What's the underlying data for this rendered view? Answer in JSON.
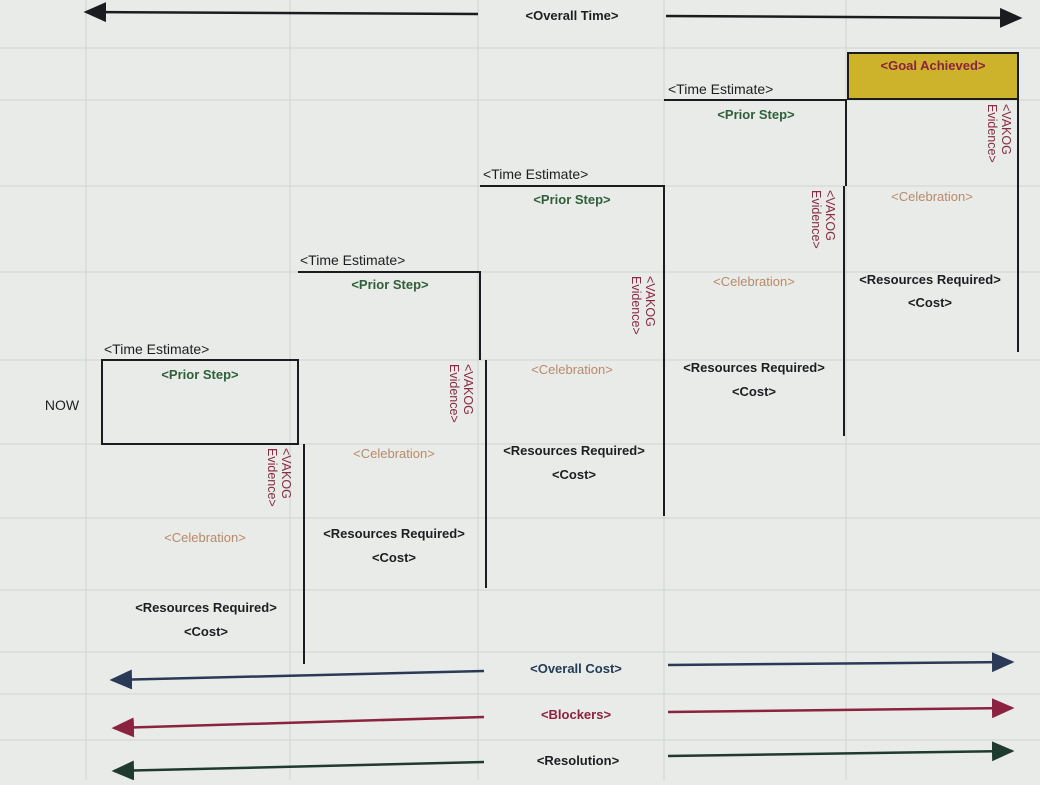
{
  "colors": {
    "paper": "#e9ebe8",
    "grid": "#cfd4d2",
    "line": "#1c1c20",
    "goal_fill": "#cdb22c",
    "cost_line": "#2a3a56",
    "blockers_line": "#8b2240",
    "resolution_line": "#1f3a2e"
  },
  "overall_time": "<Overall Time>",
  "now_label": "NOW",
  "goal": "<Goal Achieved>",
  "steps": [
    {
      "time_estimate": "<Time Estimate>",
      "prior_step": "<Prior Step>",
      "vakog_line1": "<VAKOG",
      "vakog_line2": "Evidence>",
      "celebration": "<Celebration>",
      "resources": "<Resources Required>",
      "cost": "<Cost>"
    },
    {
      "time_estimate": "<Time Estimate>",
      "prior_step": "<Prior Step>",
      "vakog_line1": "<VAKOG",
      "vakog_line2": "Evidence>",
      "celebration": "<Celebration>",
      "resources": "<Resources Required>",
      "cost": "<Cost>"
    },
    {
      "time_estimate": "<Time Estimate>",
      "prior_step": "<Prior Step>",
      "vakog_line1": "<VAKOG",
      "vakog_line2": "Evidence>",
      "celebration": "<Celebration>",
      "resources": "<Resources Required>",
      "cost": "<Cost>"
    },
    {
      "time_estimate": "<Time Estimate>",
      "prior_step": "<Prior Step>",
      "vakog_line1": "<VAKOG",
      "vakog_line2": "Evidence>",
      "celebration": "<Celebration>",
      "resources": "<Resources Required>",
      "cost": "<Cost>"
    }
  ],
  "final": {
    "vakog_line1": "<VAKOG",
    "vakog_line2": "Evidence>",
    "celebration": "<Celebration>",
    "resources": "<Resources Required>",
    "cost": "<Cost>"
  },
  "overall_cost": "<Overall Cost>",
  "blockers": "<Blockers>",
  "resolution": "<Resolution>"
}
